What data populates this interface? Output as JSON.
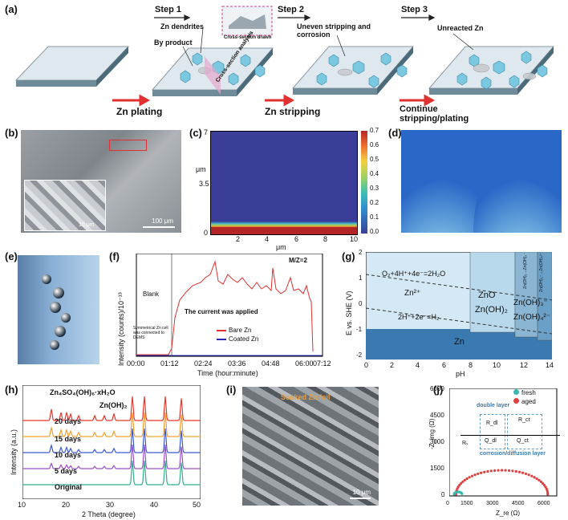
{
  "panels": {
    "a": "(a)",
    "b": "(b)",
    "c": "(c)",
    "d": "(d)",
    "e": "(e)",
    "f": "(f)",
    "g": "(g)",
    "h": "(h)",
    "i": "(i)",
    "j": "(j)"
  },
  "panel_a": {
    "step1": "Step 1",
    "step2": "Step 2",
    "step3": "Step 3",
    "zn_dendrites": "Zn dendrites",
    "by_product": "By product",
    "cross_section_drawn": "Cross-section drawn",
    "cross_section_analysis": "Cross-section analysis",
    "uneven": "Uneven stripping and corrosion",
    "unreacted": "Unreacted Zn",
    "zn_plating": "Zn plating",
    "zn_stripping": "Zn stripping",
    "continue": "Continue stripping/plating"
  },
  "panel_b": {
    "scale_small": "10 μm",
    "scale_large": "100 μm"
  },
  "panel_c": {
    "y_ticks": [
      "7",
      "3.5",
      "0"
    ],
    "x_ticks": [
      "2",
      "4",
      "6",
      "8",
      "10"
    ],
    "ylabel": "μm",
    "xlabel": "μm",
    "cbar_ticks": [
      "0.7",
      "0.6",
      "0.5",
      "0.4",
      "0.3",
      "0.2",
      "0.1",
      "0.0"
    ]
  },
  "panel_f": {
    "mz": "M/Z=2",
    "blank": "Blank",
    "applied": "The current was applied",
    "symmetrical": "Symmetrical Zn cell was connected to DEMS",
    "ylabel": "Intensity (counts)/10⁻¹³",
    "xlabel": "Time (hour:minute)",
    "x_ticks": [
      "00:00",
      "01:12",
      "02:24",
      "03:36",
      "04:48",
      "06:00",
      "07:12"
    ],
    "legend": [
      "Bare Zn",
      "Coated Zn"
    ]
  },
  "panel_g": {
    "o2": "O₂+4H⁺+4e⁻=2H₂O",
    "zn2": "Zn²⁺",
    "h2": "2H⁺+2e⁻=H₂",
    "zno": "ZnO",
    "znoh2": "Zn(OH)₂",
    "znoh3": "Zn(OH)₃⁻",
    "znoh4": "Zn(OH)₄²⁻",
    "zn": "Zn",
    "ylabel": "E vs. SHE (V)",
    "xlabel": "pH",
    "x_ticks": [
      "0",
      "2",
      "4",
      "6",
      "8",
      "10",
      "12",
      "14"
    ],
    "y_ticks": [
      "2",
      "1",
      "0",
      "-1",
      "-2"
    ],
    "vert1": "Zn(OH)₂→Zn(OH)₃⁻",
    "vert2": "Zn(OH)₃⁻→Zn(OH)₄²⁻"
  },
  "panel_h": {
    "znso4": "Zn₄SO₄(OH)₆·xH₂O",
    "znoh2": "Zn(OH)₂",
    "traces": [
      "20 days",
      "15 days",
      "10 days",
      "5 days",
      "Original"
    ],
    "ylabel": "Intensity (a.u.)",
    "xlabel": "2 Theta (degree)",
    "x_ticks": [
      "10",
      "20",
      "30",
      "40",
      "50"
    ],
    "colors": [
      "#e8362b",
      "#f0a030",
      "#3a5bd0",
      "#9b4fc8",
      "#2fae8e"
    ]
  },
  "panel_i": {
    "caption": "Soaked Zn foil",
    "scale": "10 μm"
  },
  "panel_j": {
    "legend": [
      "fresh",
      "aged"
    ],
    "double_layer": "double layer",
    "corrosion": "corrosion/diffusion layer",
    "rs": "Rₛ",
    "rdl": "R_dl",
    "rct": "R_ct",
    "qdl": "Q_dl",
    "qct": "Q_ct",
    "ylabel": "-Z_img (Ω)",
    "xlabel": "Z_re (Ω)",
    "y_ticks": [
      "6000",
      "4500",
      "3000",
      "1500",
      "0"
    ],
    "x_ticks": [
      "0",
      "1500",
      "3000",
      "4500",
      "6000"
    ]
  }
}
